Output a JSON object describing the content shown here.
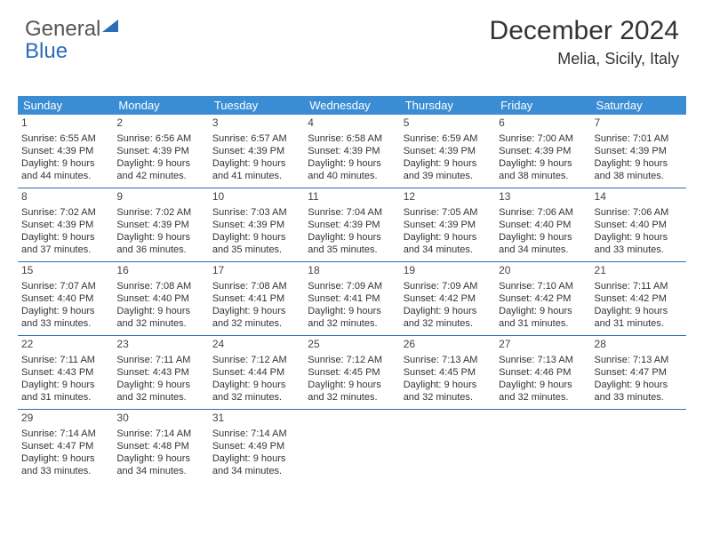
{
  "logo": {
    "text1": "General",
    "text2": "Blue"
  },
  "title": {
    "month": "December 2024",
    "location": "Melia, Sicily, Italy"
  },
  "colors": {
    "header_bg": "#3a8dd3",
    "header_text": "#ffffff",
    "week_border": "#2a6db8",
    "body_text": "#333333",
    "background": "#ffffff",
    "logo_gray": "#555555",
    "logo_blue": "#2a6db8"
  },
  "typography": {
    "month_fontsize": 30,
    "location_fontsize": 18,
    "header_fontsize": 13,
    "day_fontsize": 11,
    "daynum_fontsize": 12,
    "logo_fontsize": 24
  },
  "weekdays": [
    "Sunday",
    "Monday",
    "Tuesday",
    "Wednesday",
    "Thursday",
    "Friday",
    "Saturday"
  ],
  "weeks": [
    [
      {
        "n": "1",
        "sunrise": "Sunrise: 6:55 AM",
        "sunset": "Sunset: 4:39 PM",
        "daylight": "Daylight: 9 hours and 44 minutes."
      },
      {
        "n": "2",
        "sunrise": "Sunrise: 6:56 AM",
        "sunset": "Sunset: 4:39 PM",
        "daylight": "Daylight: 9 hours and 42 minutes."
      },
      {
        "n": "3",
        "sunrise": "Sunrise: 6:57 AM",
        "sunset": "Sunset: 4:39 PM",
        "daylight": "Daylight: 9 hours and 41 minutes."
      },
      {
        "n": "4",
        "sunrise": "Sunrise: 6:58 AM",
        "sunset": "Sunset: 4:39 PM",
        "daylight": "Daylight: 9 hours and 40 minutes."
      },
      {
        "n": "5",
        "sunrise": "Sunrise: 6:59 AM",
        "sunset": "Sunset: 4:39 PM",
        "daylight": "Daylight: 9 hours and 39 minutes."
      },
      {
        "n": "6",
        "sunrise": "Sunrise: 7:00 AM",
        "sunset": "Sunset: 4:39 PM",
        "daylight": "Daylight: 9 hours and 38 minutes."
      },
      {
        "n": "7",
        "sunrise": "Sunrise: 7:01 AM",
        "sunset": "Sunset: 4:39 PM",
        "daylight": "Daylight: 9 hours and 38 minutes."
      }
    ],
    [
      {
        "n": "8",
        "sunrise": "Sunrise: 7:02 AM",
        "sunset": "Sunset: 4:39 PM",
        "daylight": "Daylight: 9 hours and 37 minutes."
      },
      {
        "n": "9",
        "sunrise": "Sunrise: 7:02 AM",
        "sunset": "Sunset: 4:39 PM",
        "daylight": "Daylight: 9 hours and 36 minutes."
      },
      {
        "n": "10",
        "sunrise": "Sunrise: 7:03 AM",
        "sunset": "Sunset: 4:39 PM",
        "daylight": "Daylight: 9 hours and 35 minutes."
      },
      {
        "n": "11",
        "sunrise": "Sunrise: 7:04 AM",
        "sunset": "Sunset: 4:39 PM",
        "daylight": "Daylight: 9 hours and 35 minutes."
      },
      {
        "n": "12",
        "sunrise": "Sunrise: 7:05 AM",
        "sunset": "Sunset: 4:39 PM",
        "daylight": "Daylight: 9 hours and 34 minutes."
      },
      {
        "n": "13",
        "sunrise": "Sunrise: 7:06 AM",
        "sunset": "Sunset: 4:40 PM",
        "daylight": "Daylight: 9 hours and 34 minutes."
      },
      {
        "n": "14",
        "sunrise": "Sunrise: 7:06 AM",
        "sunset": "Sunset: 4:40 PM",
        "daylight": "Daylight: 9 hours and 33 minutes."
      }
    ],
    [
      {
        "n": "15",
        "sunrise": "Sunrise: 7:07 AM",
        "sunset": "Sunset: 4:40 PM",
        "daylight": "Daylight: 9 hours and 33 minutes."
      },
      {
        "n": "16",
        "sunrise": "Sunrise: 7:08 AM",
        "sunset": "Sunset: 4:40 PM",
        "daylight": "Daylight: 9 hours and 32 minutes."
      },
      {
        "n": "17",
        "sunrise": "Sunrise: 7:08 AM",
        "sunset": "Sunset: 4:41 PM",
        "daylight": "Daylight: 9 hours and 32 minutes."
      },
      {
        "n": "18",
        "sunrise": "Sunrise: 7:09 AM",
        "sunset": "Sunset: 4:41 PM",
        "daylight": "Daylight: 9 hours and 32 minutes."
      },
      {
        "n": "19",
        "sunrise": "Sunrise: 7:09 AM",
        "sunset": "Sunset: 4:42 PM",
        "daylight": "Daylight: 9 hours and 32 minutes."
      },
      {
        "n": "20",
        "sunrise": "Sunrise: 7:10 AM",
        "sunset": "Sunset: 4:42 PM",
        "daylight": "Daylight: 9 hours and 31 minutes."
      },
      {
        "n": "21",
        "sunrise": "Sunrise: 7:11 AM",
        "sunset": "Sunset: 4:42 PM",
        "daylight": "Daylight: 9 hours and 31 minutes."
      }
    ],
    [
      {
        "n": "22",
        "sunrise": "Sunrise: 7:11 AM",
        "sunset": "Sunset: 4:43 PM",
        "daylight": "Daylight: 9 hours and 31 minutes."
      },
      {
        "n": "23",
        "sunrise": "Sunrise: 7:11 AM",
        "sunset": "Sunset: 4:43 PM",
        "daylight": "Daylight: 9 hours and 32 minutes."
      },
      {
        "n": "24",
        "sunrise": "Sunrise: 7:12 AM",
        "sunset": "Sunset: 4:44 PM",
        "daylight": "Daylight: 9 hours and 32 minutes."
      },
      {
        "n": "25",
        "sunrise": "Sunrise: 7:12 AM",
        "sunset": "Sunset: 4:45 PM",
        "daylight": "Daylight: 9 hours and 32 minutes."
      },
      {
        "n": "26",
        "sunrise": "Sunrise: 7:13 AM",
        "sunset": "Sunset: 4:45 PM",
        "daylight": "Daylight: 9 hours and 32 minutes."
      },
      {
        "n": "27",
        "sunrise": "Sunrise: 7:13 AM",
        "sunset": "Sunset: 4:46 PM",
        "daylight": "Daylight: 9 hours and 32 minutes."
      },
      {
        "n": "28",
        "sunrise": "Sunrise: 7:13 AM",
        "sunset": "Sunset: 4:47 PM",
        "daylight": "Daylight: 9 hours and 33 minutes."
      }
    ],
    [
      {
        "n": "29",
        "sunrise": "Sunrise: 7:14 AM",
        "sunset": "Sunset: 4:47 PM",
        "daylight": "Daylight: 9 hours and 33 minutes."
      },
      {
        "n": "30",
        "sunrise": "Sunrise: 7:14 AM",
        "sunset": "Sunset: 4:48 PM",
        "daylight": "Daylight: 9 hours and 34 minutes."
      },
      {
        "n": "31",
        "sunrise": "Sunrise: 7:14 AM",
        "sunset": "Sunset: 4:49 PM",
        "daylight": "Daylight: 9 hours and 34 minutes."
      },
      null,
      null,
      null,
      null
    ]
  ]
}
